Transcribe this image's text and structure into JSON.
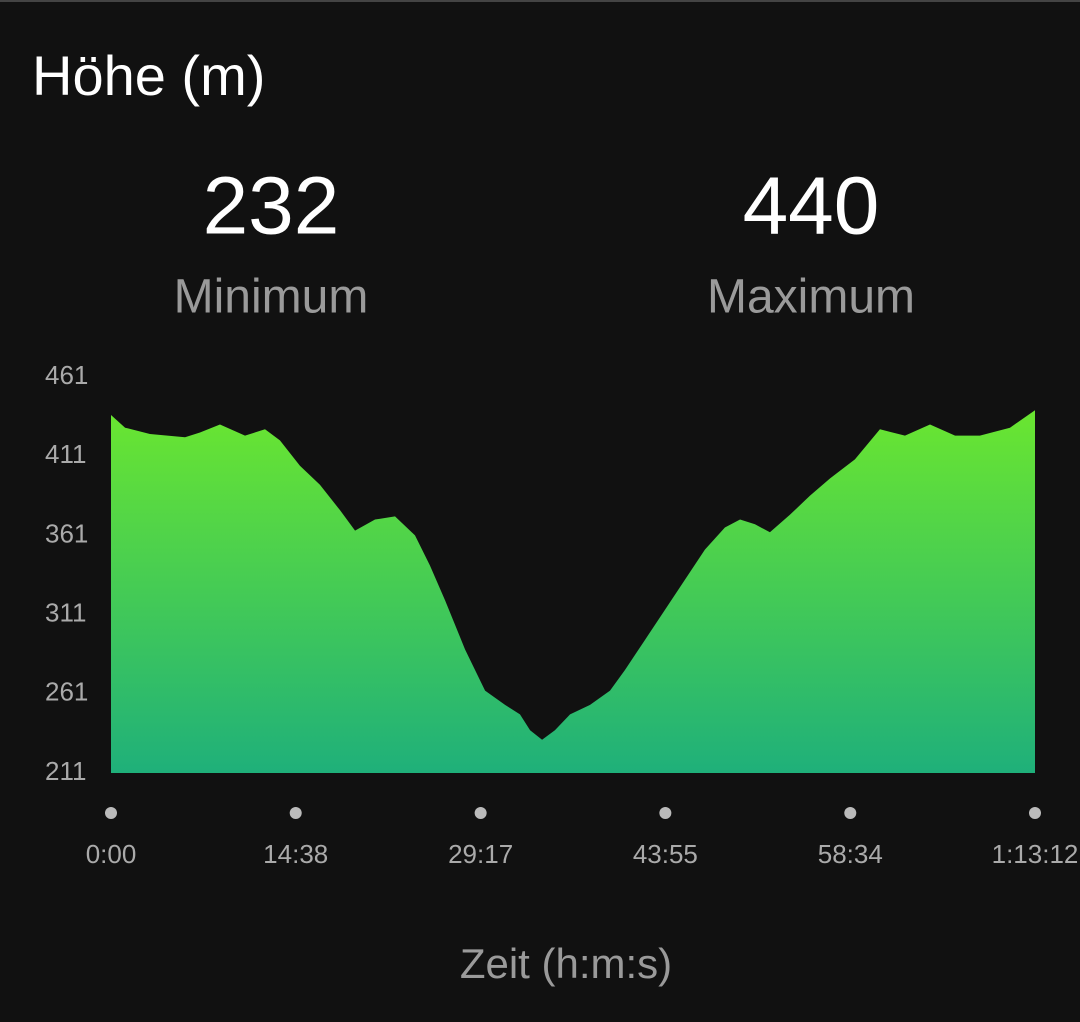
{
  "chart_data": {
    "type": "area",
    "title": "Höhe (m)",
    "stats": [
      {
        "value": 232,
        "label": "Minimum"
      },
      {
        "value": 440,
        "label": "Maximum"
      }
    ],
    "x_label": "Zeit (h:m:s)",
    "x": [
      0,
      67,
      185,
      352,
      423,
      518,
      637,
      732,
      803,
      898,
      993,
      1088,
      1160,
      1255,
      1350,
      1445,
      1516,
      1588,
      1683,
      1778,
      1873,
      1944,
      1992,
      2049,
      2110,
      2182,
      2277,
      2372,
      2443,
      2538,
      2633,
      2728,
      2823,
      2918,
      2990,
      3061,
      3132,
      3227,
      3322,
      3418,
      3536,
      3655,
      3774,
      3893,
      4012,
      4130,
      4273,
      4392
    ],
    "values": [
      437,
      429,
      425,
      423,
      426,
      431,
      424,
      428,
      421,
      405,
      393,
      377,
      364,
      371,
      373,
      361,
      342,
      320,
      289,
      263,
      254,
      248,
      238,
      232,
      238,
      248,
      254,
      263,
      276,
      295,
      314,
      333,
      352,
      366,
      371,
      368,
      363,
      374,
      386,
      397,
      409,
      428,
      424,
      431,
      424,
      424,
      429,
      440
    ],
    "gradient": [
      "#6ae630",
      "#1fb07a"
    ],
    "xlim": [
      0,
      4392
    ],
    "xticks": [
      {
        "value": 0,
        "label": "0:00"
      },
      {
        "value": 878,
        "label": "14:38"
      },
      {
        "value": 1757,
        "label": "29:17"
      },
      {
        "value": 2635,
        "label": "43:55"
      },
      {
        "value": 3514,
        "label": "58:34"
      },
      {
        "value": 4392,
        "label": "1:13:12"
      }
    ],
    "ylim": [
      211,
      461
    ],
    "yticks": [
      211,
      261,
      311,
      361,
      411,
      461
    ]
  }
}
